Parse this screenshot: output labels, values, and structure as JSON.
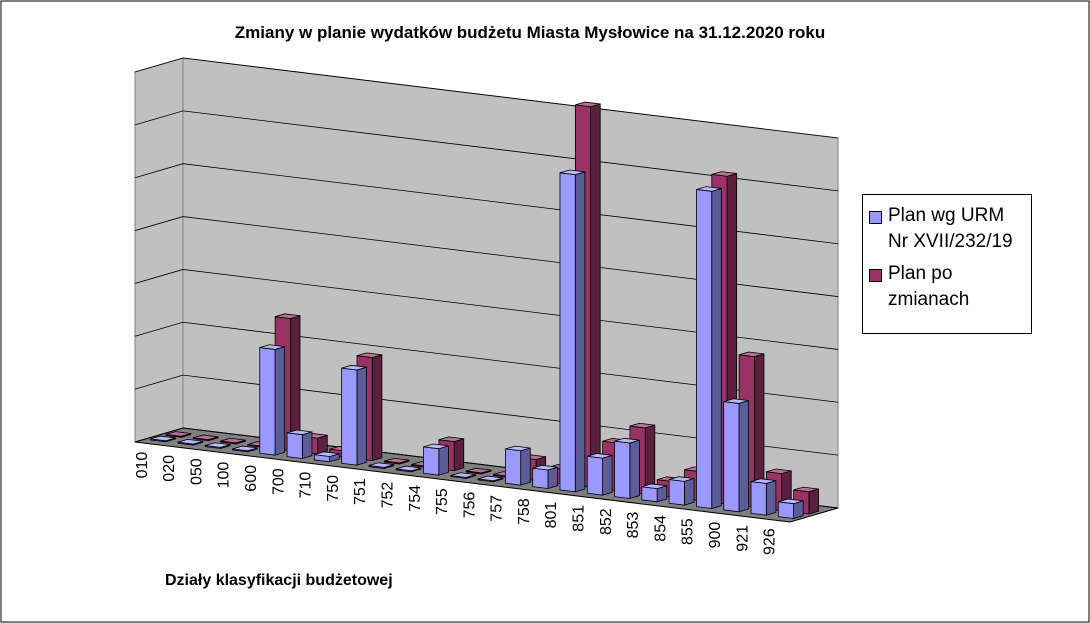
{
  "chart_data": {
    "type": "bar3d",
    "title": "Zmiany w planie wydatków budżetu Miasta Mysłowice na 31.12.2020 roku",
    "x_label": "Działy klasyfikacji budżetowej",
    "categories": [
      "010",
      "020",
      "050",
      "100",
      "600",
      "700",
      "710",
      "750",
      "751",
      "752",
      "754",
      "755",
      "756",
      "757",
      "758",
      "801",
      "851",
      "852",
      "853",
      "854",
      "855",
      "900",
      "921",
      "926"
    ],
    "series": [
      {
        "name": "Plan wg URM Nr XVII/232/19",
        "color": "#9999ff",
        "values": [
          0.02,
          0.02,
          0.02,
          0.02,
          2.0,
          0.45,
          0.1,
          1.8,
          0.02,
          0.02,
          0.5,
          0.02,
          0.02,
          0.65,
          0.35,
          6.0,
          0.7,
          1.05,
          0.25,
          0.45,
          6.0,
          2.05,
          0.6,
          0.28
        ]
      },
      {
        "name": "Plan po zmianach",
        "color": "#993366",
        "values": [
          0.02,
          0.02,
          0.02,
          0.02,
          2.5,
          0.3,
          0.12,
          1.95,
          0.02,
          0.02,
          0.55,
          0.02,
          0.02,
          0.4,
          0.28,
          7.2,
          0.9,
          1.25,
          0.3,
          0.55,
          6.2,
          2.85,
          0.7,
          0.42
        ]
      }
    ],
    "ylim": [
      0,
      7
    ],
    "yticks": [
      0,
      1,
      2,
      3,
      4,
      5,
      6,
      7
    ],
    "grid": true,
    "legend": "right"
  }
}
